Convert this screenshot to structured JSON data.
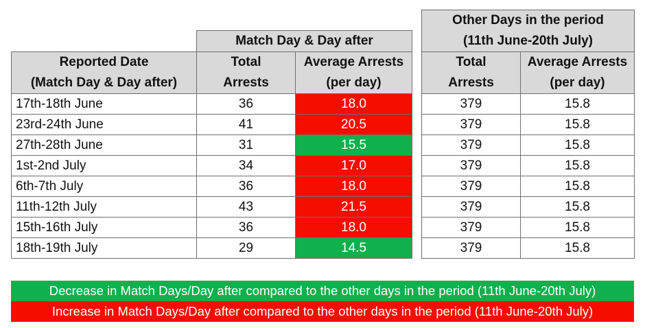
{
  "left": {
    "group_header": "Match Day & Day after",
    "col_date": [
      "Reported Date",
      "(Match Day & Day after)"
    ],
    "col_total": [
      "Total",
      "Arrests"
    ],
    "col_avg": [
      "Average Arrests",
      "(per day)"
    ],
    "rows": [
      {
        "date": "17th-18th June",
        "total": "36",
        "avg": "18.0",
        "status": "increase"
      },
      {
        "date": "23rd-24th June",
        "total": "41",
        "avg": "20.5",
        "status": "increase"
      },
      {
        "date": "27th-28th June",
        "total": "31",
        "avg": "15.5",
        "status": "decrease"
      },
      {
        "date": "1st-2nd July",
        "total": "34",
        "avg": "17.0",
        "status": "increase"
      },
      {
        "date": "6th-7th July",
        "total": "36",
        "avg": "18.0",
        "status": "increase"
      },
      {
        "date": "11th-12th July",
        "total": "43",
        "avg": "21.5",
        "status": "increase"
      },
      {
        "date": "15th-16th July",
        "total": "36",
        "avg": "18.0",
        "status": "increase"
      },
      {
        "date": "18th-19th July",
        "total": "29",
        "avg": "14.5",
        "status": "decrease"
      }
    ]
  },
  "right": {
    "group_header": [
      "Other Days in the period",
      "(11th June-20th July)"
    ],
    "col_total": [
      "Total",
      "Arrests"
    ],
    "col_avg": [
      "Average Arrests",
      "(per day)"
    ],
    "rows": [
      {
        "total": "379",
        "avg": "15.8"
      },
      {
        "total": "379",
        "avg": "15.8"
      },
      {
        "total": "379",
        "avg": "15.8"
      },
      {
        "total": "379",
        "avg": "15.8"
      },
      {
        "total": "379",
        "avg": "15.8"
      },
      {
        "total": "379",
        "avg": "15.8"
      },
      {
        "total": "379",
        "avg": "15.8"
      },
      {
        "total": "379",
        "avg": "15.8"
      }
    ]
  },
  "legend": {
    "decrease": "Decrease in Match Days/Day after compared to the other days in the period (11th June-20th July)",
    "increase": "Increase in Match Days/Day after compared to the other days in the period (11th June-20th July)"
  },
  "colors": {
    "increase": "#f50e00",
    "decrease": "#10b04c",
    "header": "#d9d9d9"
  }
}
